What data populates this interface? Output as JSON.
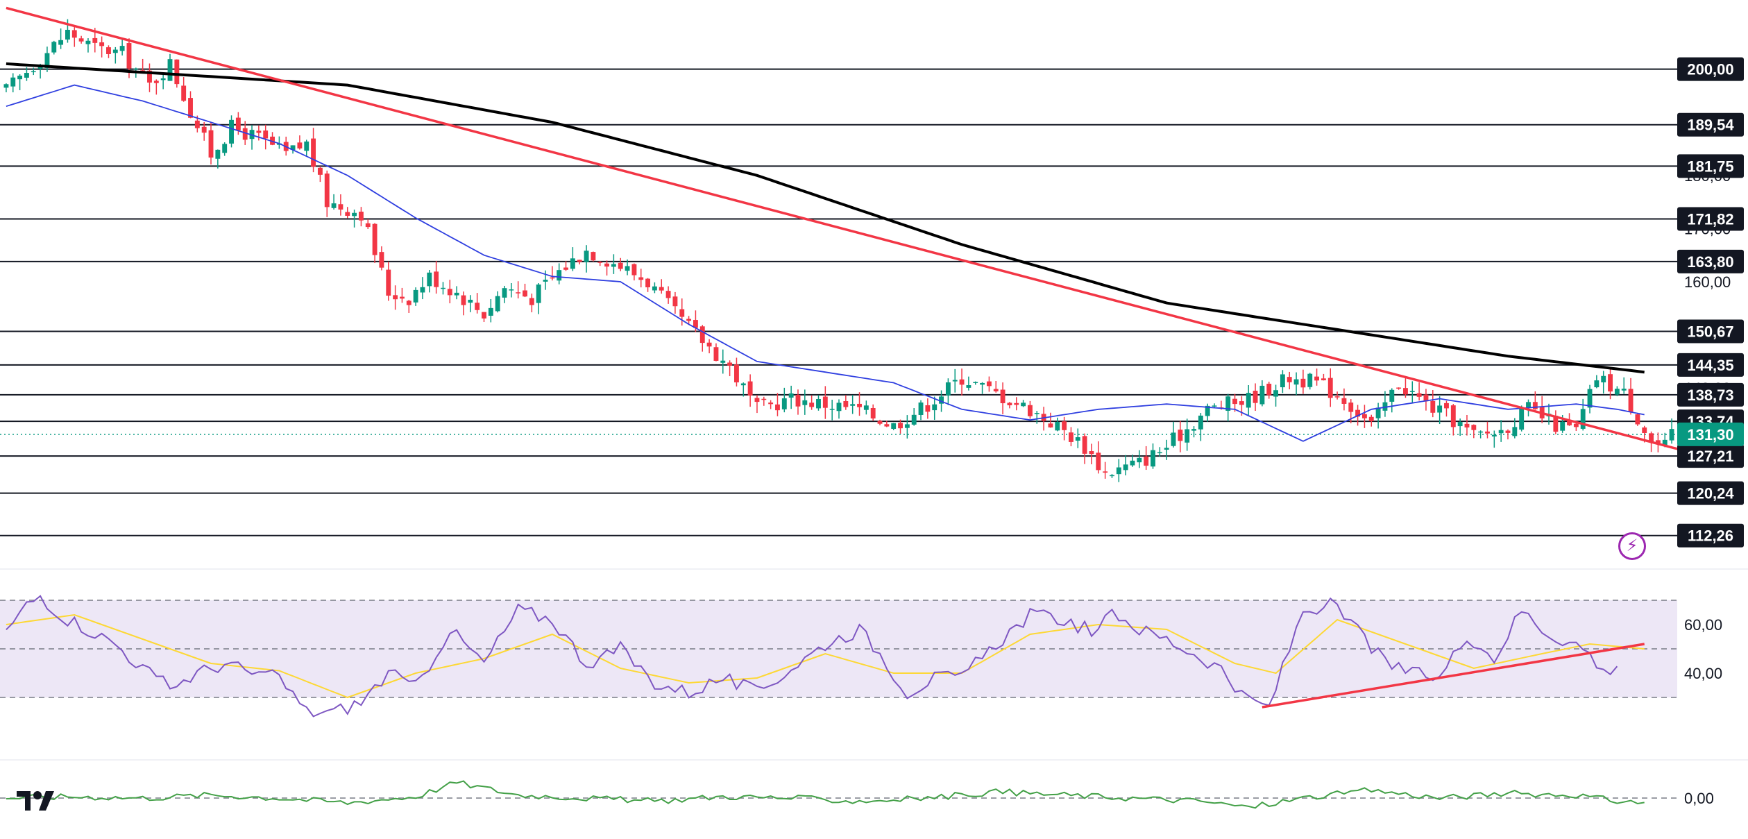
{
  "colors": {
    "up": "#089981",
    "down": "#f23645",
    "sma_fast": "#2f3fe0",
    "sma_slow": "#000000",
    "trendline": "#f23645",
    "current_price": "#089981",
    "rsi": "#7e57c2",
    "rsi_ma": "#fdd835",
    "rsi_band": "#ede7f6",
    "momentum": "#43a047",
    "bolt": "#9c27b0"
  },
  "icons": {
    "logo": "tradingview-logo",
    "alert": "lightning-bolt-icon"
  },
  "chart_data": [
    {
      "type": "candlestick",
      "title": "",
      "bars": 245,
      "ylim": [
        107,
        213
      ],
      "y_ticks": [
        "200,00",
        "180,00",
        "170,00",
        "160,00",
        "140,00",
        "130,00"
      ],
      "y_tick_values": [
        200,
        180,
        170,
        160,
        140,
        130
      ],
      "levels": [
        {
          "value": 200.0,
          "label": "200,00"
        },
        {
          "value": 189.54,
          "label": "189,54"
        },
        {
          "value": 181.75,
          "label": "181,75"
        },
        {
          "value": 171.82,
          "label": "171,82"
        },
        {
          "value": 163.8,
          "label": "163,80"
        },
        {
          "value": 150.67,
          "label": "150,67"
        },
        {
          "value": 144.35,
          "label": "144,35"
        },
        {
          "value": 138.73,
          "label": "138,73"
        },
        {
          "value": 133.74,
          "label": "133,74"
        },
        {
          "value": 127.21,
          "label": "127,21"
        },
        {
          "value": 120.24,
          "label": "120,24"
        },
        {
          "value": 112.26,
          "label": "112,26"
        }
      ],
      "current_price": {
        "value": 131.3,
        "label": "131,30"
      },
      "trendline": {
        "from": {
          "bar": 0,
          "value": 211.5
        },
        "to": {
          "bar": 245,
          "value": 128.5
        }
      },
      "close_anchors": [
        [
          0,
          196
        ],
        [
          5,
          202
        ],
        [
          9,
          207
        ],
        [
          13,
          204
        ],
        [
          17,
          203
        ],
        [
          21,
          197
        ],
        [
          24,
          201
        ],
        [
          27,
          192
        ],
        [
          30,
          184
        ],
        [
          33,
          189
        ],
        [
          37,
          187
        ],
        [
          41,
          184
        ],
        [
          44,
          186
        ],
        [
          47,
          175
        ],
        [
          52,
          173
        ],
        [
          56,
          158
        ],
        [
          59,
          157
        ],
        [
          62,
          161
        ],
        [
          66,
          158
        ],
        [
          70,
          154
        ],
        [
          73,
          159
        ],
        [
          77,
          157
        ],
        [
          81,
          162
        ],
        [
          85,
          166
        ],
        [
          90,
          163
        ],
        [
          94,
          160
        ],
        [
          98,
          154
        ],
        [
          102,
          149
        ],
        [
          106,
          144
        ],
        [
          110,
          136
        ],
        [
          115,
          138
        ],
        [
          120,
          137
        ],
        [
          125,
          136
        ],
        [
          130,
          133
        ],
        [
          135,
          137
        ],
        [
          140,
          142
        ],
        [
          145,
          139
        ],
        [
          150,
          136
        ],
        [
          155,
          132
        ],
        [
          158,
          129
        ],
        [
          161,
          124
        ],
        [
          166,
          126
        ],
        [
          170,
          129
        ],
        [
          176,
          136
        ],
        [
          182,
          138
        ],
        [
          188,
          142
        ],
        [
          192,
          141
        ],
        [
          196,
          138
        ],
        [
          200,
          133
        ],
        [
          204,
          141
        ],
        [
          208,
          137
        ],
        [
          212,
          134
        ],
        [
          215,
          131
        ],
        [
          219,
          132
        ],
        [
          223,
          136
        ],
        [
          227,
          133
        ],
        [
          230,
          132
        ],
        [
          233,
          142
        ],
        [
          237,
          139
        ],
        [
          241,
          130
        ],
        [
          243,
          129
        ],
        [
          244,
          131
        ]
      ],
      "sma_fast_anchors": [
        [
          0,
          193
        ],
        [
          10,
          197
        ],
        [
          20,
          194
        ],
        [
          30,
          190
        ],
        [
          40,
          186
        ],
        [
          50,
          180
        ],
        [
          60,
          172
        ],
        [
          70,
          165
        ],
        [
          80,
          161
        ],
        [
          90,
          160
        ],
        [
          100,
          152
        ],
        [
          110,
          145
        ],
        [
          120,
          143
        ],
        [
          130,
          141
        ],
        [
          140,
          136
        ],
        [
          150,
          134
        ],
        [
          160,
          136
        ],
        [
          170,
          137
        ],
        [
          180,
          136
        ],
        [
          190,
          130
        ],
        [
          200,
          136
        ],
        [
          210,
          138
        ],
        [
          220,
          136
        ],
        [
          230,
          137
        ],
        [
          236,
          136
        ],
        [
          240,
          135
        ]
      ],
      "sma_slow_anchors": [
        [
          0,
          201
        ],
        [
          25,
          199
        ],
        [
          50,
          197
        ],
        [
          80,
          190
        ],
        [
          110,
          180
        ],
        [
          140,
          167
        ],
        [
          170,
          156
        ],
        [
          200,
          150
        ],
        [
          220,
          146
        ],
        [
          240,
          143
        ]
      ]
    },
    {
      "type": "line",
      "title": "",
      "ylim": [
        20,
        80
      ],
      "y_ticks": [
        "60,00",
        "40,00"
      ],
      "y_tick_values": [
        60,
        40
      ],
      "bands": {
        "upper": 70,
        "middle": 50,
        "lower": 30
      },
      "rsi_anchors": [
        [
          0,
          57
        ],
        [
          3,
          68
        ],
        [
          5,
          72
        ],
        [
          8,
          64
        ],
        [
          12,
          58
        ],
        [
          16,
          52
        ],
        [
          20,
          42
        ],
        [
          24,
          34
        ],
        [
          28,
          40
        ],
        [
          32,
          44
        ],
        [
          36,
          40
        ],
        [
          40,
          38
        ],
        [
          44,
          24
        ],
        [
          48,
          24
        ],
        [
          52,
          28
        ],
        [
          56,
          40
        ],
        [
          60,
          34
        ],
        [
          65,
          58
        ],
        [
          70,
          44
        ],
        [
          75,
          66
        ],
        [
          80,
          62
        ],
        [
          85,
          44
        ],
        [
          90,
          50
        ],
        [
          95,
          36
        ],
        [
          100,
          32
        ],
        [
          105,
          38
        ],
        [
          110,
          32
        ],
        [
          115,
          42
        ],
        [
          120,
          52
        ],
        [
          125,
          58
        ],
        [
          128,
          48
        ],
        [
          132,
          32
        ],
        [
          136,
          38
        ],
        [
          140,
          38
        ],
        [
          145,
          52
        ],
        [
          150,
          64
        ],
        [
          155,
          62
        ],
        [
          160,
          56
        ],
        [
          162,
          66
        ],
        [
          166,
          58
        ],
        [
          170,
          54
        ],
        [
          174,
          48
        ],
        [
          178,
          42
        ],
        [
          181,
          30
        ],
        [
          185,
          26
        ],
        [
          190,
          66
        ],
        [
          194,
          68
        ],
        [
          198,
          58
        ],
        [
          202,
          44
        ],
        [
          206,
          40
        ],
        [
          210,
          38
        ],
        [
          214,
          56
        ],
        [
          218,
          46
        ],
        [
          222,
          66
        ],
        [
          226,
          56
        ],
        [
          230,
          52
        ],
        [
          232,
          48
        ],
        [
          234,
          40
        ],
        [
          236,
          44
        ]
      ],
      "rsi_ma_anchors": [
        [
          0,
          60
        ],
        [
          10,
          64
        ],
        [
          20,
          54
        ],
        [
          30,
          44
        ],
        [
          40,
          41
        ],
        [
          50,
          30
        ],
        [
          60,
          40
        ],
        [
          70,
          46
        ],
        [
          80,
          56
        ],
        [
          90,
          42
        ],
        [
          100,
          36
        ],
        [
          110,
          38
        ],
        [
          120,
          48
        ],
        [
          130,
          40
        ],
        [
          140,
          40
        ],
        [
          150,
          56
        ],
        [
          160,
          60
        ],
        [
          170,
          58
        ],
        [
          180,
          44
        ],
        [
          186,
          40
        ],
        [
          195,
          62
        ],
        [
          205,
          52
        ],
        [
          215,
          42
        ],
        [
          225,
          48
        ],
        [
          232,
          52
        ],
        [
          240,
          50
        ]
      ],
      "trendline": {
        "from": {
          "bar": 184,
          "value": 26
        },
        "to": {
          "bar": 240,
          "value": 52
        }
      }
    },
    {
      "type": "line",
      "title": "",
      "ylim": [
        -1,
        1
      ],
      "y_ticks": [
        "0,00"
      ],
      "y_tick_values": [
        0
      ],
      "anchors": [
        [
          0,
          0.0
        ],
        [
          10,
          0.05
        ],
        [
          20,
          0.0
        ],
        [
          30,
          0.1
        ],
        [
          40,
          0.0
        ],
        [
          50,
          -0.15
        ],
        [
          60,
          0.05
        ],
        [
          66,
          0.5
        ],
        [
          75,
          0.1
        ],
        [
          85,
          0.0
        ],
        [
          95,
          -0.1
        ],
        [
          105,
          0.05
        ],
        [
          115,
          0.0
        ],
        [
          125,
          -0.1
        ],
        [
          135,
          0.0
        ],
        [
          145,
          0.2
        ],
        [
          155,
          0.1
        ],
        [
          165,
          0.0
        ],
        [
          175,
          -0.1
        ],
        [
          182,
          -0.3
        ],
        [
          190,
          0.0
        ],
        [
          200,
          0.25
        ],
        [
          210,
          0.0
        ],
        [
          220,
          0.15
        ],
        [
          230,
          0.1
        ],
        [
          236,
          -0.1
        ],
        [
          240,
          -0.15
        ]
      ]
    }
  ]
}
